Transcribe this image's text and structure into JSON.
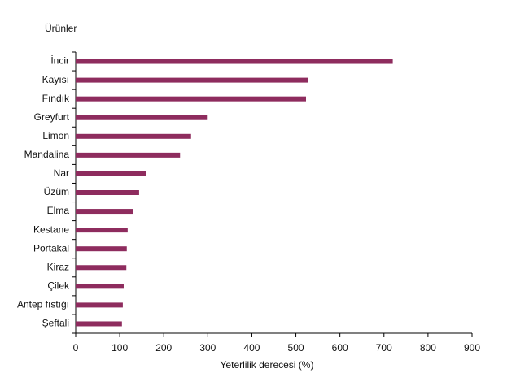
{
  "chart_data": {
    "type": "bar",
    "orientation": "horizontal",
    "y_label": "Ürünler",
    "x_label": "Yeterlilik derecesi (%)",
    "categories": [
      "İncir",
      "Kayısı",
      "Fındık",
      "Greyfurt",
      "Limon",
      "Mandalina",
      "Nar",
      "Üzüm",
      "Elma",
      "Kestane",
      "Portakal",
      "Kiraz",
      "Çilek",
      "Antep fıstığı",
      "Şeftali"
    ],
    "values": [
      720,
      527,
      523,
      298,
      262,
      237,
      159,
      144,
      131,
      118,
      116,
      115,
      109,
      107,
      105
    ],
    "color": "#8e2c5e",
    "xlim": [
      0,
      900
    ],
    "xticks": [
      0,
      100,
      200,
      300,
      400,
      500,
      600,
      700,
      800,
      900
    ],
    "grid": false
  }
}
